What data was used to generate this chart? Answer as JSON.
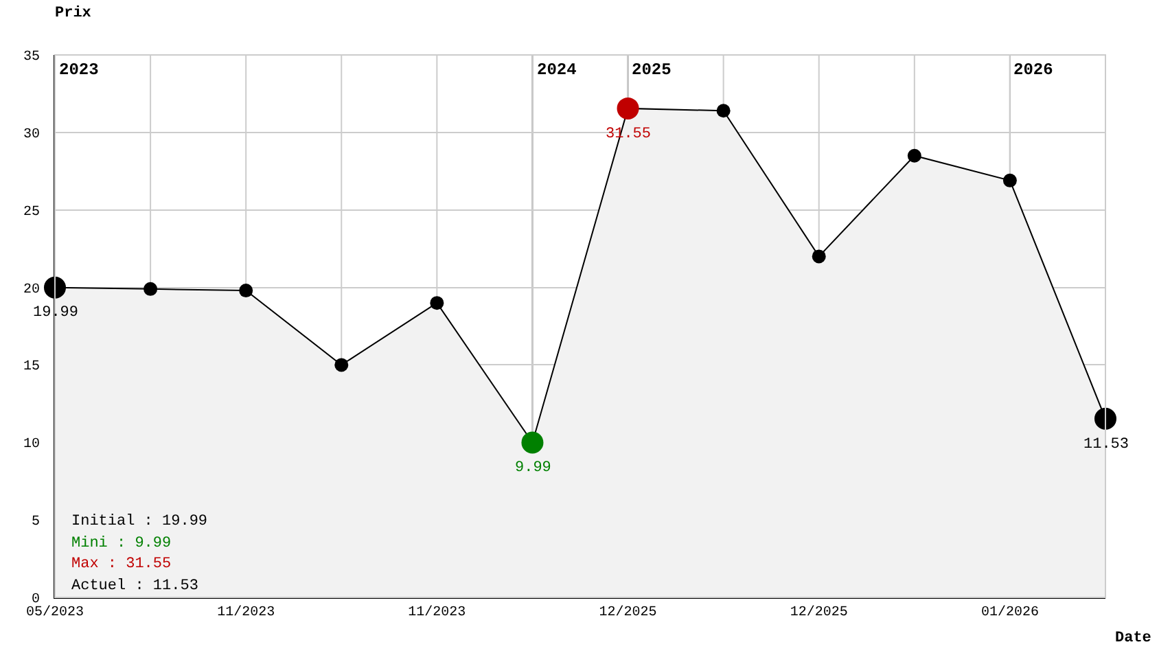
{
  "chart_data": {
    "type": "area",
    "ylabel": "Prix",
    "xlabel": "Date",
    "categories": [
      "05/2023",
      null,
      "11/2023",
      null,
      "11/2023",
      null,
      "12/2025",
      null,
      "12/2025",
      null,
      "01/2026",
      null
    ],
    "series": [
      {
        "color": "#f2f2f2",
        "values": [
          19.99,
          19.9,
          19.8,
          15.0,
          19.0,
          9.99,
          31.55,
          31.4,
          22.0,
          28.5,
          26.9,
          11.53
        ],
        "colors": [
          "#000000",
          "#000000",
          "#000000",
          "#000000",
          "#000000",
          "#008000",
          "#c00000",
          "#000000",
          "#000000",
          "#000000",
          "#000000",
          "#000000"
        ],
        "value_labels": [
          "19.99",
          null,
          null,
          null,
          null,
          "9.99",
          "31.55",
          null,
          null,
          null,
          null,
          "11.53"
        ]
      }
    ],
    "ylim": [
      0,
      35
    ],
    "yticks": [
      0,
      5,
      10,
      15,
      20,
      25,
      30,
      35
    ],
    "grid": true,
    "marker": "circle",
    "line_style": "solid",
    "annotations": [
      "Initial : 19.99",
      "Mini : 9.99",
      "Max : 31.55",
      "Actuel : 11.53",
      "2023",
      "2024",
      "2025",
      "2026"
    ]
  }
}
